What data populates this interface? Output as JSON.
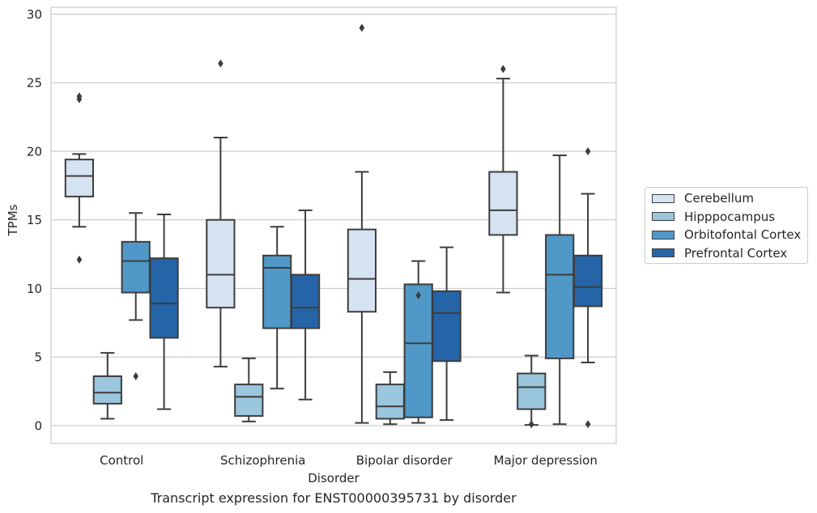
{
  "chart_data": {
    "type": "box",
    "xlabel": "Disorder",
    "ylabel": "TPMs",
    "ylim": [
      -1.3,
      30.5
    ],
    "yticks": [
      0,
      5,
      10,
      15,
      20,
      25,
      30
    ],
    "grid": "horizontal",
    "legend_position": "right",
    "categories": [
      "Control",
      "Schizophrenia",
      "Bipolar disorder",
      "Major depression"
    ],
    "series": [
      {
        "name": "Cerebellum",
        "color": "#d4e2f1",
        "boxes": [
          {
            "whislo": 14.5,
            "q1": 16.7,
            "med": 18.2,
            "q3": 19.4,
            "whishi": 19.8,
            "fliers": [
              24.0,
              23.8,
              12.1
            ]
          },
          {
            "whislo": 4.3,
            "q1": 8.6,
            "med": 11.0,
            "q3": 15.0,
            "whishi": 21.0,
            "fliers": [
              26.4
            ]
          },
          {
            "whislo": 0.2,
            "q1": 8.3,
            "med": 10.7,
            "q3": 14.3,
            "whishi": 18.5,
            "fliers": [
              29.0
            ]
          },
          {
            "whislo": 9.7,
            "q1": 13.9,
            "med": 15.7,
            "q3": 18.5,
            "whishi": 25.3,
            "fliers": [
              26.0
            ]
          }
        ]
      },
      {
        "name": "Hipppocampus",
        "color": "#9ac6de",
        "boxes": [
          {
            "whislo": 0.5,
            "q1": 1.6,
            "med": 2.4,
            "q3": 3.6,
            "whishi": 5.3,
            "fliers": []
          },
          {
            "whislo": 0.3,
            "q1": 0.7,
            "med": 2.1,
            "q3": 3.0,
            "whishi": 4.9,
            "fliers": []
          },
          {
            "whislo": 0.1,
            "q1": 0.5,
            "med": 1.4,
            "q3": 3.0,
            "whishi": 3.9,
            "fliers": []
          },
          {
            "whislo": 0.05,
            "q1": 1.2,
            "med": 2.8,
            "q3": 3.8,
            "whishi": 5.1,
            "fliers": [
              0.1
            ]
          }
        ]
      },
      {
        "name": "Orbitofontal Cortex",
        "color": "#5098c8",
        "boxes": [
          {
            "whislo": 7.7,
            "q1": 9.7,
            "med": 12.0,
            "q3": 13.4,
            "whishi": 15.5,
            "fliers": [
              3.6
            ]
          },
          {
            "whislo": 2.7,
            "q1": 7.1,
            "med": 11.5,
            "q3": 12.4,
            "whishi": 14.5,
            "fliers": []
          },
          {
            "whislo": 0.2,
            "q1": 0.6,
            "med": 6.0,
            "q3": 10.3,
            "whishi": 12.0,
            "fliers": [
              9.5
            ]
          },
          {
            "whislo": 0.1,
            "q1": 4.9,
            "med": 11.0,
            "q3": 13.9,
            "whishi": 19.7,
            "fliers": []
          }
        ]
      },
      {
        "name": "Prefrontal Cortex",
        "color": "#2565a7",
        "boxes": [
          {
            "whislo": 1.2,
            "q1": 6.4,
            "med": 8.9,
            "q3": 12.2,
            "whishi": 15.4,
            "fliers": []
          },
          {
            "whislo": 1.9,
            "q1": 7.1,
            "med": 8.6,
            "q3": 11.0,
            "whishi": 15.7,
            "fliers": []
          },
          {
            "whislo": 0.4,
            "q1": 4.7,
            "med": 8.2,
            "q3": 9.8,
            "whishi": 13.0,
            "fliers": []
          },
          {
            "whislo": 4.6,
            "q1": 8.7,
            "med": 10.1,
            "q3": 12.4,
            "whishi": 16.9,
            "fliers": [
              20.0,
              0.1
            ]
          }
        ]
      }
    ]
  },
  "caption": "Transcript expression for ENST00000395731 by disorder"
}
